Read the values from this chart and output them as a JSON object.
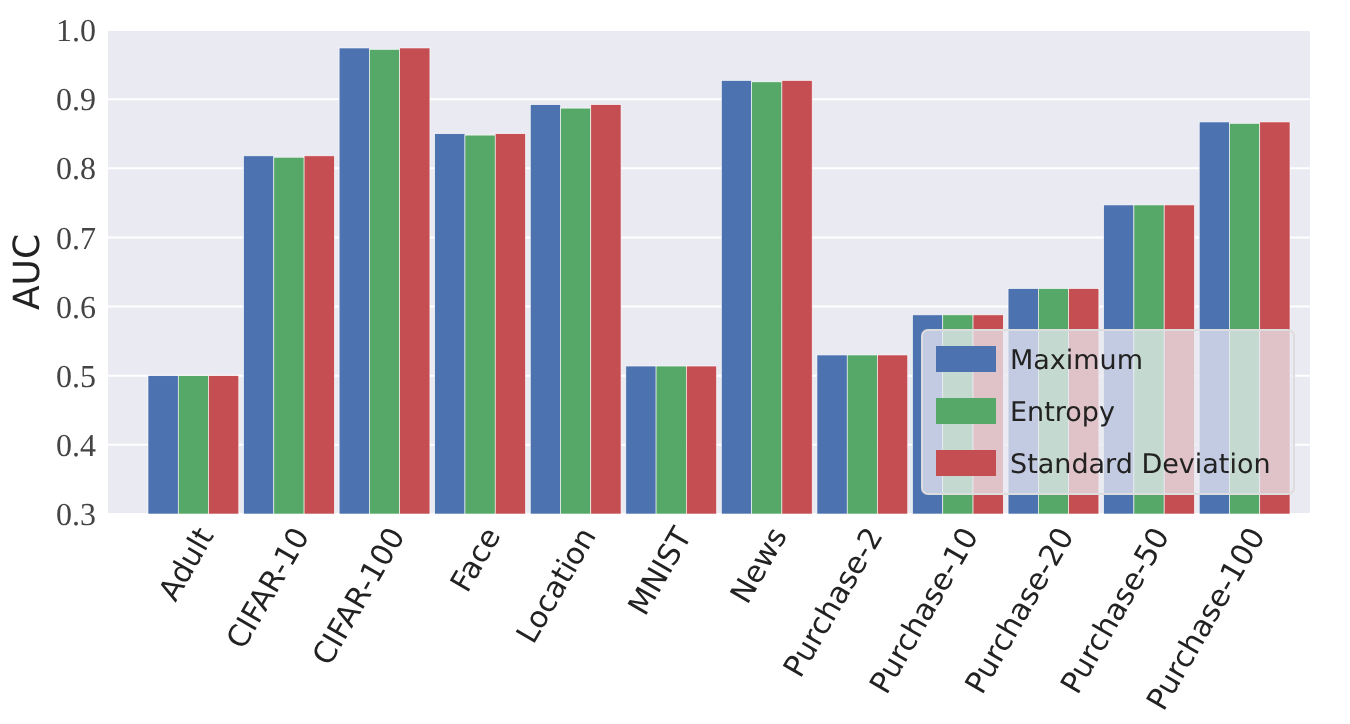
{
  "chart_data": {
    "type": "bar",
    "ylabel": "AUC",
    "categories": [
      "Adult",
      "CIFAR-10",
      "CIFAR-100",
      "Face",
      "Location",
      "MNIST",
      "News",
      "Purchase-2",
      "Purchase-10",
      "Purchase-20",
      "Purchase-50",
      "Purchase-100"
    ],
    "series": [
      {
        "name": "Maximum",
        "color": "#4c72b0",
        "values": [
          0.5,
          0.818,
          0.974,
          0.85,
          0.892,
          0.514,
          0.927,
          0.53,
          0.588,
          0.626,
          0.747,
          0.867
        ]
      },
      {
        "name": "Entropy",
        "color": "#55a868",
        "values": [
          0.5,
          0.816,
          0.972,
          0.848,
          0.887,
          0.514,
          0.925,
          0.53,
          0.588,
          0.626,
          0.747,
          0.865
        ]
      },
      {
        "name": "Standard Deviation",
        "color": "#c44e52",
        "values": [
          0.5,
          0.818,
          0.974,
          0.85,
          0.892,
          0.514,
          0.927,
          0.53,
          0.588,
          0.626,
          0.747,
          0.867
        ]
      }
    ],
    "ylim": [
      0.3,
      1.0
    ],
    "yticks": [
      {
        "value": 0.3,
        "label": "0.3"
      },
      {
        "value": 0.4,
        "label": "0.4"
      },
      {
        "value": 0.5,
        "label": "0.5"
      },
      {
        "value": 0.6,
        "label": "0.6"
      },
      {
        "value": 0.7,
        "label": "0.7"
      },
      {
        "value": 0.8,
        "label": "0.8"
      },
      {
        "value": 0.9,
        "label": "0.9"
      },
      {
        "value": 1.0,
        "label": "1.0"
      }
    ],
    "grid": "y",
    "legend": "bottom right"
  }
}
